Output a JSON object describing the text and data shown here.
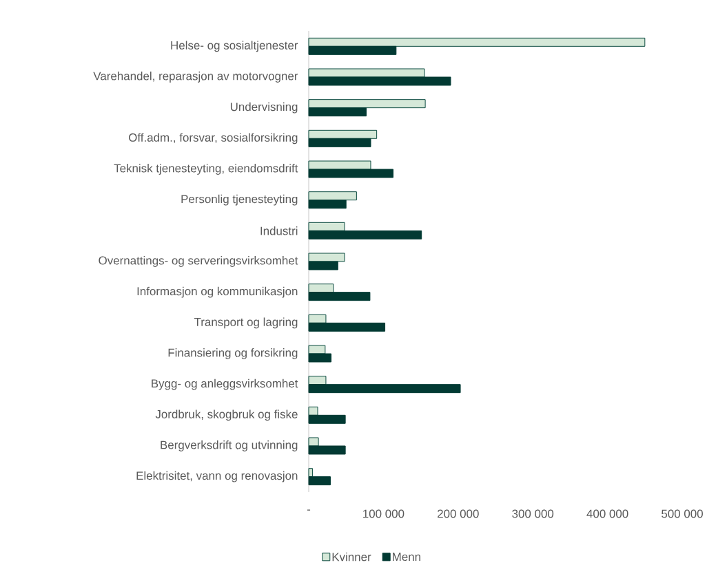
{
  "chart_data": {
    "type": "bar",
    "orientation": "horizontal",
    "categories": [
      "Helse- og sosialtjenester",
      "Varehandel, reparasjon av motorvogner",
      "Undervisning",
      "Off.adm., forsvar, sosialforsikring",
      "Teknisk tjenesteyting, eiendomsdrift",
      "Personlig tjenesteyting",
      "Industri",
      "Overnattings- og serveringsvirksomhet",
      "Informasjon og kommunikasjon",
      "Transport og lagring",
      "Finansiering og forsikring",
      "Bygg- og anleggsvirksomhet",
      "Jordbruk, skogbruk og fiske",
      "Bergverksdrift og utvinning",
      "Elektrisitet, vann og renovasjon"
    ],
    "series": [
      {
        "name": "Kvinner",
        "color": "#d5e8d8",
        "values": [
          450000,
          155000,
          156000,
          91000,
          83000,
          64000,
          48000,
          48000,
          33000,
          23000,
          22000,
          23000,
          12000,
          13000,
          5000
        ]
      },
      {
        "name": "Menn",
        "color": "#023a33",
        "values": [
          117000,
          190000,
          77000,
          83000,
          113000,
          50000,
          151000,
          39000,
          82000,
          102000,
          30000,
          203000,
          49000,
          49000,
          29000
        ]
      }
    ],
    "xlim": [
      0,
      500000
    ],
    "xticks": [
      {
        "value": 0,
        "label": "-"
      },
      {
        "value": 100000,
        "label": "100 000"
      },
      {
        "value": 200000,
        "label": "200 000"
      },
      {
        "value": 300000,
        "label": "300 000"
      },
      {
        "value": 400000,
        "label": "400 000"
      },
      {
        "value": 500000,
        "label": "500 000"
      }
    ],
    "legend": "bottom"
  }
}
